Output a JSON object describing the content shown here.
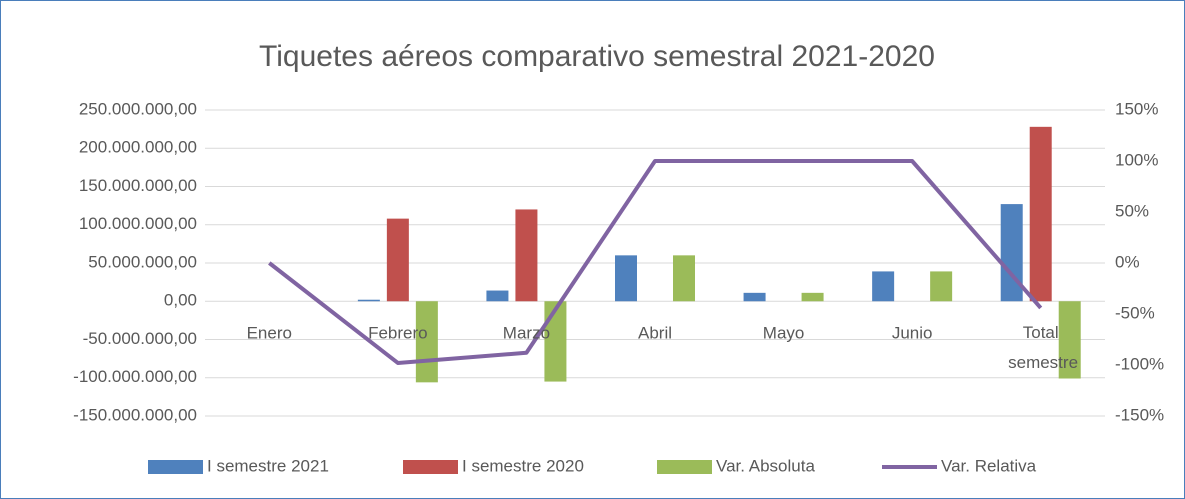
{
  "chart_data": {
    "type": "bar_line",
    "title": "Tiquetes aéreos comparativo semestral 2021-2020",
    "categories": [
      "Enero",
      "Febrero",
      "Marzo",
      "Abril",
      "Mayo",
      "Junio",
      "Total semestre"
    ],
    "series": [
      {
        "name": "I semestre 2021",
        "color": "#4f81bd",
        "type": "bar",
        "values": [
          0,
          2000000,
          14000000,
          60000000,
          11000000,
          39000000,
          127000000
        ]
      },
      {
        "name": "I semestre 2020",
        "color": "#c0504d",
        "type": "bar",
        "values": [
          0,
          108000000,
          120000000,
          0,
          0,
          0,
          228000000
        ]
      },
      {
        "name": "Var. Absoluta",
        "color": "#9bbb59",
        "type": "bar",
        "values": [
          0,
          -106000000,
          -105000000,
          60000000,
          11000000,
          39000000,
          -101000000
        ]
      },
      {
        "name": "Var. Relativa",
        "color": "#8064a2",
        "type": "line",
        "axis": "y2",
        "values": [
          0,
          -98,
          -88,
          100,
          100,
          100,
          -44
        ]
      }
    ],
    "ylim": [
      -150000000,
      250000000
    ],
    "yticks": [
      {
        "value": 250000000,
        "label": "250.000.000,00"
      },
      {
        "value": 200000000,
        "label": "200.000.000,00"
      },
      {
        "value": 150000000,
        "label": "150.000.000,00"
      },
      {
        "value": 100000000,
        "label": "100.000.000,00"
      },
      {
        "value": 50000000,
        "label": "50.000.000,00"
      },
      {
        "value": 0,
        "label": "0,00"
      },
      {
        "value": -50000000,
        "label": "-50.000.000,00"
      },
      {
        "value": -100000000,
        "label": "-100.000.000,00"
      },
      {
        "value": -150000000,
        "label": "-150.000.000,00"
      }
    ],
    "y2lim": [
      -150,
      150
    ],
    "y2ticks": [
      {
        "value": 150,
        "label": "150%"
      },
      {
        "value": 100,
        "label": "100%"
      },
      {
        "value": 50,
        "label": "50%"
      },
      {
        "value": 0,
        "label": "0%"
      },
      {
        "value": -50,
        "label": "-50%"
      },
      {
        "value": -100,
        "label": "-100%"
      },
      {
        "value": -150,
        "label": "-150%"
      }
    ],
    "grid": true,
    "legend": "bottom"
  }
}
